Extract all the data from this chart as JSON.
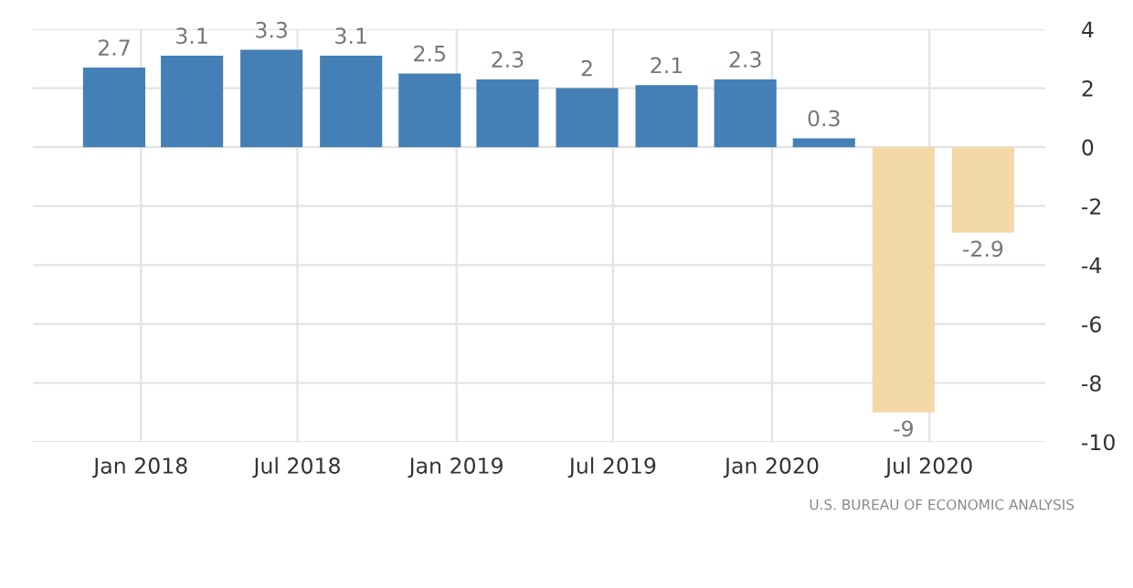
{
  "chart_data": {
    "type": "bar",
    "x": [
      "2017-12-01",
      "2018-03-01",
      "2018-06-01",
      "2018-09-01",
      "2018-12-01",
      "2019-03-01",
      "2019-06-01",
      "2019-09-01",
      "2019-12-01",
      "2020-03-01",
      "2020-06-01",
      "2020-09-01"
    ],
    "values": [
      2.7,
      3.1,
      3.3,
      3.1,
      2.5,
      2.3,
      2,
      2.1,
      2.3,
      0.3,
      -9,
      -2.9
    ],
    "colors": [
      "#447fb6",
      "#447fb6",
      "#447fb6",
      "#447fb6",
      "#447fb6",
      "#447fb6",
      "#447fb6",
      "#447fb6",
      "#447fb6",
      "#447fb6",
      "#f3d9a8",
      "#f3d9a8"
    ],
    "data_labels": true,
    "xlim": [
      "2017-08-29",
      "2020-11-12"
    ],
    "xticks": [
      {
        "value": "2018-01-01",
        "label": "Jan 2018"
      },
      {
        "value": "2018-07-01",
        "label": "Jul 2018"
      },
      {
        "value": "2019-01-01",
        "label": "Jan 2019"
      },
      {
        "value": "2019-07-01",
        "label": "Jul 2019"
      },
      {
        "value": "2020-01-01",
        "label": "Jan 2020"
      },
      {
        "value": "2020-07-01",
        "label": "Jul 2020"
      }
    ],
    "ylim": [
      -10,
      4
    ],
    "yticks": [
      -10,
      -8,
      -6,
      -4,
      -2,
      0,
      2,
      4
    ],
    "grid": true,
    "annotations": [
      "U.S. BUREAU OF ECONOMIC ANALYSIS"
    ]
  }
}
